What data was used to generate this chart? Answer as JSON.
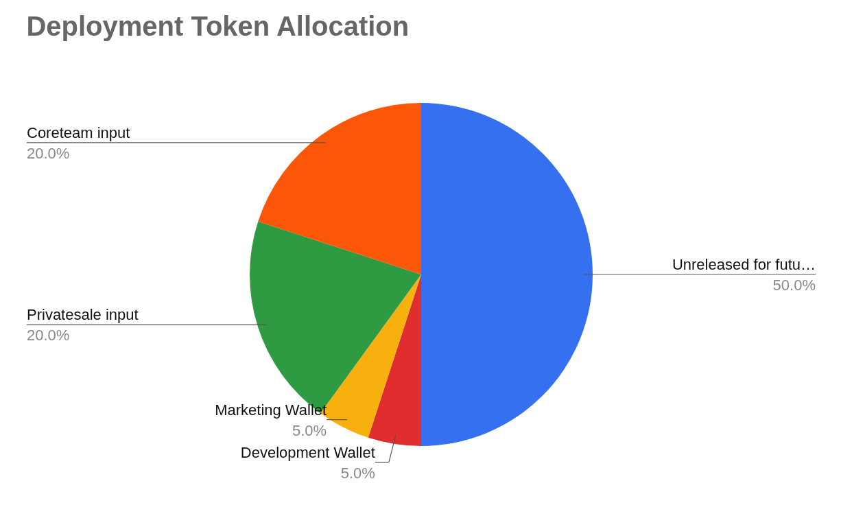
{
  "chart_data": {
    "type": "pie",
    "title": "Deployment Token Allocation",
    "categories": [
      "Unreleased for futu…",
      "Development Wallet",
      "Marketing Wallet",
      "Privatesale input",
      "Coreteam input"
    ],
    "values": [
      50,
      5,
      5,
      20,
      20
    ],
    "value_labels": [
      "50.0%",
      "5.0%",
      "5.0%",
      "20.0%",
      "20.0%"
    ],
    "colors": [
      "#3570f0",
      "#e02e2e",
      "#f8b00e",
      "#2e9a42",
      "#fc5608"
    ],
    "legend": false
  }
}
